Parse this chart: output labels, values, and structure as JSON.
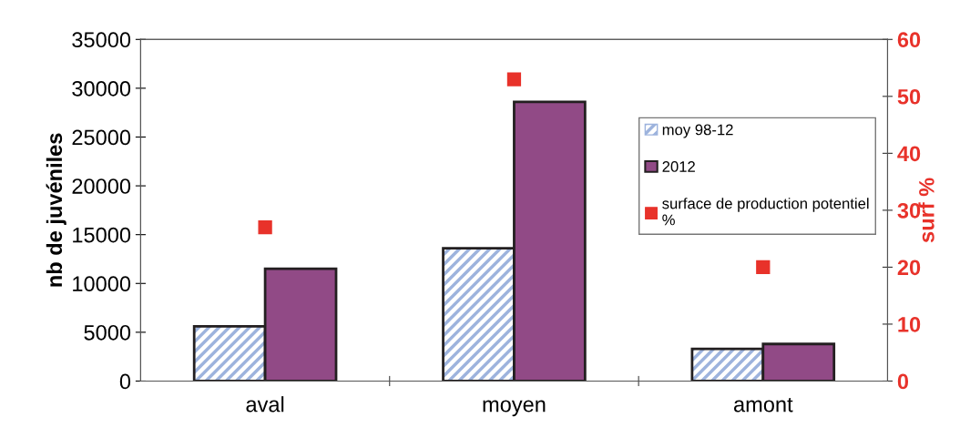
{
  "chart_data": {
    "type": "bar",
    "ylabel": "nb de juvéniles",
    "y2label": "surf %",
    "categories": [
      "aval",
      "moyen",
      "amont"
    ],
    "series": [
      {
        "name": "moy 98-12",
        "color": "#9db3dd",
        "values": [
          5600,
          13600,
          3300
        ]
      },
      {
        "name": "2012",
        "color": "#914a86",
        "values": [
          11500,
          28600,
          3800
        ]
      },
      {
        "name": "surface de production potentiel\n%",
        "type": "scatter",
        "axis": "y2",
        "color": "#e8322a",
        "values": [
          27,
          53,
          20
        ]
      }
    ],
    "ylim": [
      0,
      35000
    ],
    "yticks": [
      0,
      5000,
      10000,
      15000,
      20000,
      25000,
      30000,
      35000
    ],
    "y2lim": [
      0,
      60
    ],
    "y2ticks": [
      0,
      10,
      20,
      30,
      40,
      50,
      60
    ],
    "marker": "square",
    "legend": "right",
    "grid": false
  }
}
